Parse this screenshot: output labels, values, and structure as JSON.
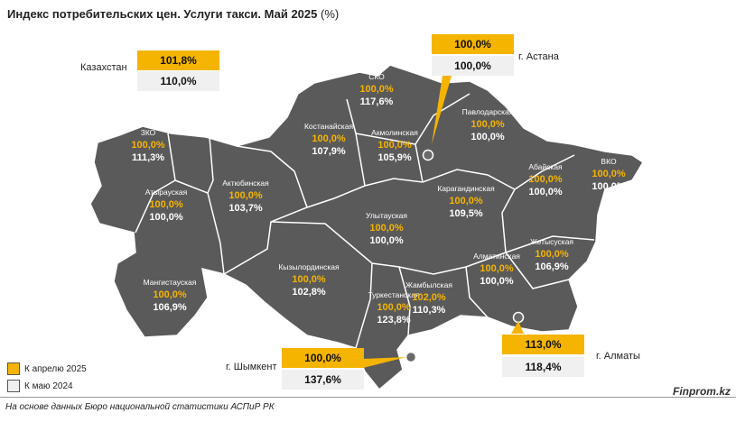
{
  "title": "Индекс потребительских цен. Услуги такси. Май 2025",
  "title_unit": "(%)",
  "colors": {
    "apr": "#f5b400",
    "may": "#f0f0f0",
    "region": "#5a5a5a"
  },
  "kazakhstan": {
    "name": "Казахстан",
    "apr": "101,8%",
    "may": "110,0%"
  },
  "cities": {
    "astana": {
      "name": "г. Астана",
      "apr": "100,0%",
      "may": "100,0%"
    },
    "almaty": {
      "name": "г. Алматы",
      "apr": "113,0%",
      "may": "118,4%"
    },
    "shymkent": {
      "name": "г. Шымкент",
      "apr": "100,0%",
      "may": "137,6%"
    }
  },
  "regions": [
    {
      "name": "ЗКО",
      "apr": "100,0%",
      "may": "111,3%"
    },
    {
      "name": "Атырауская",
      "apr": "100,0%",
      "may": "100,0%"
    },
    {
      "name": "Актюбинская",
      "apr": "100,0%",
      "may": "103,7%"
    },
    {
      "name": "Мангистауская",
      "apr": "100,0%",
      "may": "106,9%"
    },
    {
      "name": "Костанайская",
      "apr": "100,0%",
      "may": "107,9%"
    },
    {
      "name": "СКО",
      "apr": "100,0%",
      "may": "117,6%"
    },
    {
      "name": "Акмолинская",
      "apr": "100,0%",
      "may": "105,9%"
    },
    {
      "name": "Павлодарская",
      "apr": "100,0%",
      "may": "100,0%"
    },
    {
      "name": "Абайская",
      "apr": "100,0%",
      "may": "100,0%"
    },
    {
      "name": "ВКО",
      "apr": "100,0%",
      "may": "100,0%"
    },
    {
      "name": "Карагандинская",
      "apr": "100,0%",
      "may": "109,5%"
    },
    {
      "name": "Улытауская",
      "apr": "100,0%",
      "may": "100,0%"
    },
    {
      "name": "Кызылординская",
      "apr": "100,0%",
      "may": "102,8%"
    },
    {
      "name": "Туркестанская",
      "apr": "100,0%",
      "may": "123,8%"
    },
    {
      "name": "Жамбылская",
      "apr": "102,0%",
      "may": "110,3%"
    },
    {
      "name": "Алматинская",
      "apr": "100,0%",
      "may": "100,0%"
    },
    {
      "name": "Жетысуская",
      "apr": "100,0%",
      "may": "106,9%"
    }
  ],
  "legend": {
    "apr": "К апрелю 2025",
    "may": "К маю 2024"
  },
  "source": "На основе данных Бюро национальной статистики АСПиР РК",
  "brand": "Finprom.kz"
}
